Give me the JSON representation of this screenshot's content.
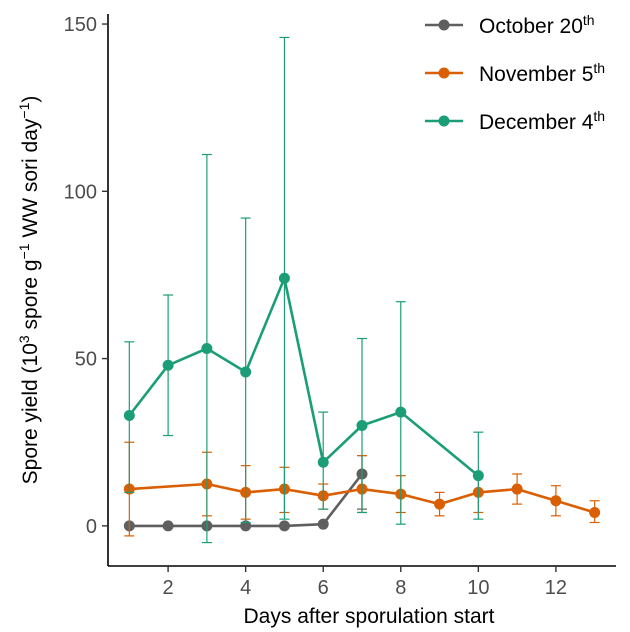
{
  "chart_data": {
    "type": "line",
    "xlabel": "Days after sporulation start",
    "ylabel": {
      "pre": "Spore yield (10",
      "sup1": "3",
      "mid": " spore g",
      "sup2": "−1",
      "mid2": " WW sori day",
      "sup3": "−1",
      "post": ")"
    },
    "xlim": [
      0.45,
      13.55
    ],
    "ylim": [
      -12,
      153
    ],
    "x_ticks": [
      2,
      4,
      6,
      8,
      10,
      12
    ],
    "y_ticks": [
      0,
      50,
      100,
      150
    ],
    "grid": false,
    "legend_position": "top-right",
    "series": [
      {
        "name": "October 20",
        "name_sup": "th",
        "color": "#5f5f5f",
        "points": [
          {
            "x": 1,
            "y": 0,
            "lo": 0,
            "hi": 0
          },
          {
            "x": 2,
            "y": 0,
            "lo": 0,
            "hi": 0
          },
          {
            "x": 3,
            "y": 0,
            "lo": 0,
            "hi": 0
          },
          {
            "x": 4,
            "y": 0,
            "lo": 0,
            "hi": 0
          },
          {
            "x": 5,
            "y": 0,
            "lo": 0,
            "hi": 0
          },
          {
            "x": 6,
            "y": 0.5,
            "lo": 0.3,
            "hi": 0.7
          },
          {
            "x": 7,
            "y": 15.5,
            "lo": 5,
            "hi": 21
          }
        ]
      },
      {
        "name": "November 5",
        "name_sup": "th",
        "color": "#d95f02",
        "points": [
          {
            "x": 1,
            "y": 11,
            "lo": -3,
            "hi": 25
          },
          {
            "x": 3,
            "y": 12.5,
            "lo": 3,
            "hi": 22
          },
          {
            "x": 4,
            "y": 10,
            "lo": 2,
            "hi": 18
          },
          {
            "x": 5,
            "y": 11,
            "lo": 4,
            "hi": 17.5
          },
          {
            "x": 6,
            "y": 9,
            "lo": 5,
            "hi": 12.5
          },
          {
            "x": 7,
            "y": 11,
            "lo": 4,
            "hi": 21
          },
          {
            "x": 8,
            "y": 9.5,
            "lo": 4,
            "hi": 15
          },
          {
            "x": 9,
            "y": 6.5,
            "lo": 3,
            "hi": 10
          },
          {
            "x": 10,
            "y": 10,
            "lo": 4,
            "hi": 15.5
          },
          {
            "x": 11,
            "y": 11,
            "lo": 6.5,
            "hi": 15.5
          },
          {
            "x": 12,
            "y": 7.5,
            "lo": 3,
            "hi": 12
          },
          {
            "x": 13,
            "y": 4,
            "lo": 1,
            "hi": 7.5
          }
        ]
      },
      {
        "name": "December 4",
        "name_sup": "th",
        "color": "#1b9e77",
        "points": [
          {
            "x": 1,
            "y": 33,
            "lo": 10,
            "hi": 55
          },
          {
            "x": 2,
            "y": 48,
            "lo": 27,
            "hi": 69
          },
          {
            "x": 3,
            "y": 53,
            "lo": -5,
            "hi": 111
          },
          {
            "x": 4,
            "y": 46,
            "lo": 1,
            "hi": 92
          },
          {
            "x": 5,
            "y": 74,
            "lo": 2,
            "hi": 146
          },
          {
            "x": 6,
            "y": 19,
            "lo": 5,
            "hi": 34
          },
          {
            "x": 7,
            "y": 30,
            "lo": 4,
            "hi": 56
          },
          {
            "x": 8,
            "y": 34,
            "lo": 0.5,
            "hi": 67
          },
          {
            "x": 10,
            "y": 15,
            "lo": 2,
            "hi": 28
          }
        ]
      }
    ]
  }
}
